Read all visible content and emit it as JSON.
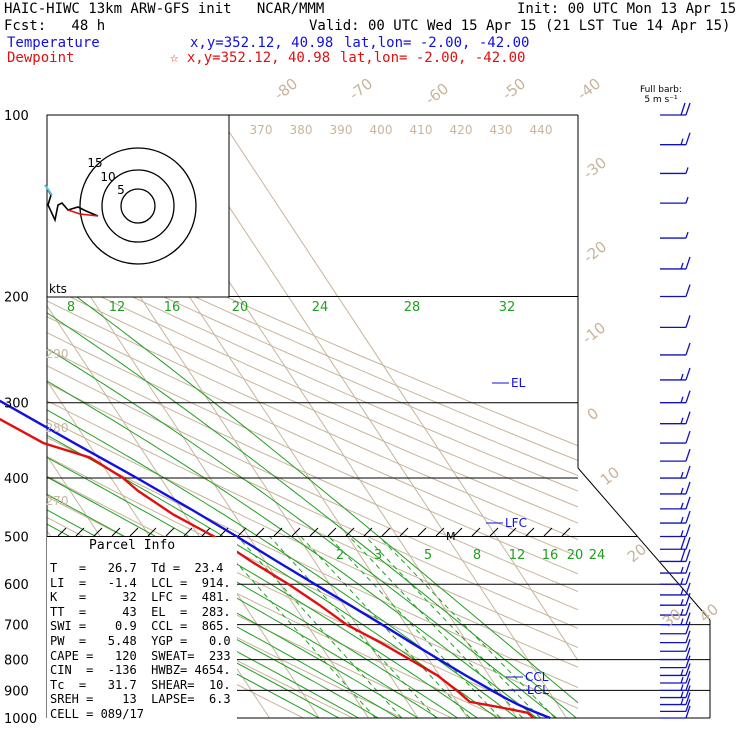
{
  "header": {
    "line1_left": "HAIC-HIWC 13km ARW-GFS init   NCAR/MMM",
    "line1_right": "Init: 00 UTC Mon 13 Apr 15",
    "line2_left": "Fcst:   48 h",
    "line2_right": "Valid: 00 UTC Wed 15 Apr 15 (21 LST Tue 14 Apr 15)",
    "temperature_label": "Temperature",
    "temperature_xy": "x,y=352.12, 40.98",
    "temperature_latlon": "lat,lon= -2.00, -42.00",
    "dewpoint_label": "Dewpoint",
    "dewpoint_xy": "☆ x,y=352.12, 40.98",
    "dewpoint_latlon": "lat,lon= -2.00, -42.00",
    "barb_legend_1": "Full barb:",
    "barb_legend_2": "5 m s⁻¹"
  },
  "colors": {
    "temperature": "#1010e0",
    "dewpoint": "#e01010",
    "isotherm": "#c8b49c",
    "mixing_ratio": "#20a020",
    "isobar": "#000000"
  },
  "chart_data": {
    "type": "line",
    "subtype": "skew-T log-p sounding",
    "pressure_axis": {
      "ticks": [
        100,
        200,
        300,
        400,
        500,
        600,
        700,
        800,
        900,
        1000
      ],
      "scale": "log"
    },
    "temperature_labels": [
      "-80",
      "-70",
      "-60",
      "-50",
      "-40",
      "-30",
      "-20",
      "-10",
      "0",
      "10",
      "20",
      "30",
      "40"
    ],
    "theta_labels": [
      "370",
      "380",
      "390",
      "400",
      "410",
      "420",
      "430",
      "440",
      "290",
      "280",
      "270"
    ],
    "mixing_ratio_labels_top": [
      "8",
      "12",
      "16",
      "20",
      "24",
      "28",
      "32"
    ],
    "mixing_ratio_labels_low": [
      "2",
      "3",
      "5",
      "8",
      "12",
      "16",
      "20",
      "24"
    ],
    "series": [
      {
        "name": "Temperature",
        "p": [
          1000,
          975,
          950,
          925,
          900,
          850,
          800,
          750,
          700,
          650,
          600,
          550,
          500,
          450,
          400,
          350,
          300,
          250,
          200,
          150,
          120,
          100
        ],
        "t": [
          26.7,
          24.2,
          22.0,
          20.2,
          18.6,
          15.3,
          12.1,
          8.7,
          5.2,
          1.3,
          -3.0,
          -7.6,
          -12.4,
          -18.1,
          -24.8,
          -32.8,
          -41.8,
          -52.5,
          -65.5,
          -79.5,
          -84.0,
          -84.5
        ]
      },
      {
        "name": "Dewpoint",
        "p": [
          1000,
          980,
          960,
          940,
          900,
          850,
          800,
          750,
          700,
          650,
          600,
          550,
          500,
          460,
          420,
          400,
          370,
          350,
          300,
          250,
          235,
          210,
          200,
          170,
          150,
          130,
          110,
          100
        ],
        "t": [
          23.4,
          22.8,
          18.0,
          12.6,
          11.5,
          9.6,
          6.2,
          2.5,
          -2.0,
          -4.8,
          -8.3,
          -12.8,
          -17.0,
          -22.3,
          -26.3,
          -27.6,
          -31.5,
          -39.0,
          -48.5,
          -61.5,
          -70.5,
          -70.0,
          -71.0,
          -82.0,
          -91.5,
          -96.0,
          -94.5,
          -94.5
        ]
      }
    ],
    "parcel_levels": [
      "EL",
      "LFC",
      "CCL",
      "LCL"
    ],
    "mixing_marker": "M",
    "hodograph": {
      "ring_labels": [
        "5",
        "10",
        "15"
      ],
      "unit_label": "kts"
    }
  },
  "parcel_info": {
    "title": "Parcel Info",
    "rows": [
      "T   =   26.7  Td =  23.4",
      "LI  =   -1.4  LCL =  914.",
      "K   =     32  LFC =  481.",
      "TT  =     43  EL  =  283.",
      "SWI =    0.9  CCL =  865.",
      "PW  =   5.48  YGP =   0.0",
      "CAPE =   120  SWEAT=  233",
      "CIN  =  -136  HWBZ= 4654.",
      "Tc  =   31.7  SHEAR=  10.",
      "SREH =    13  LAPSE=  6.3",
      "CELL = 089/17"
    ]
  },
  "wind_barbs": {
    "p": [
      1000,
      975,
      950,
      925,
      900,
      875,
      850,
      825,
      800,
      775,
      750,
      725,
      700,
      675,
      650,
      625,
      600,
      575,
      550,
      525,
      500,
      475,
      450,
      425,
      400,
      375,
      350,
      325,
      300,
      275,
      250,
      225,
      200,
      180,
      160,
      140,
      125,
      112,
      100
    ],
    "speed_kt": [
      10,
      10,
      15,
      15,
      15,
      15,
      15,
      10,
      10,
      10,
      10,
      10,
      15,
      15,
      15,
      15,
      15,
      15,
      20,
      20,
      15,
      15,
      15,
      15,
      15,
      10,
      10,
      15,
      15,
      15,
      10,
      10,
      10,
      15,
      5,
      5,
      5,
      15,
      20
    ]
  }
}
